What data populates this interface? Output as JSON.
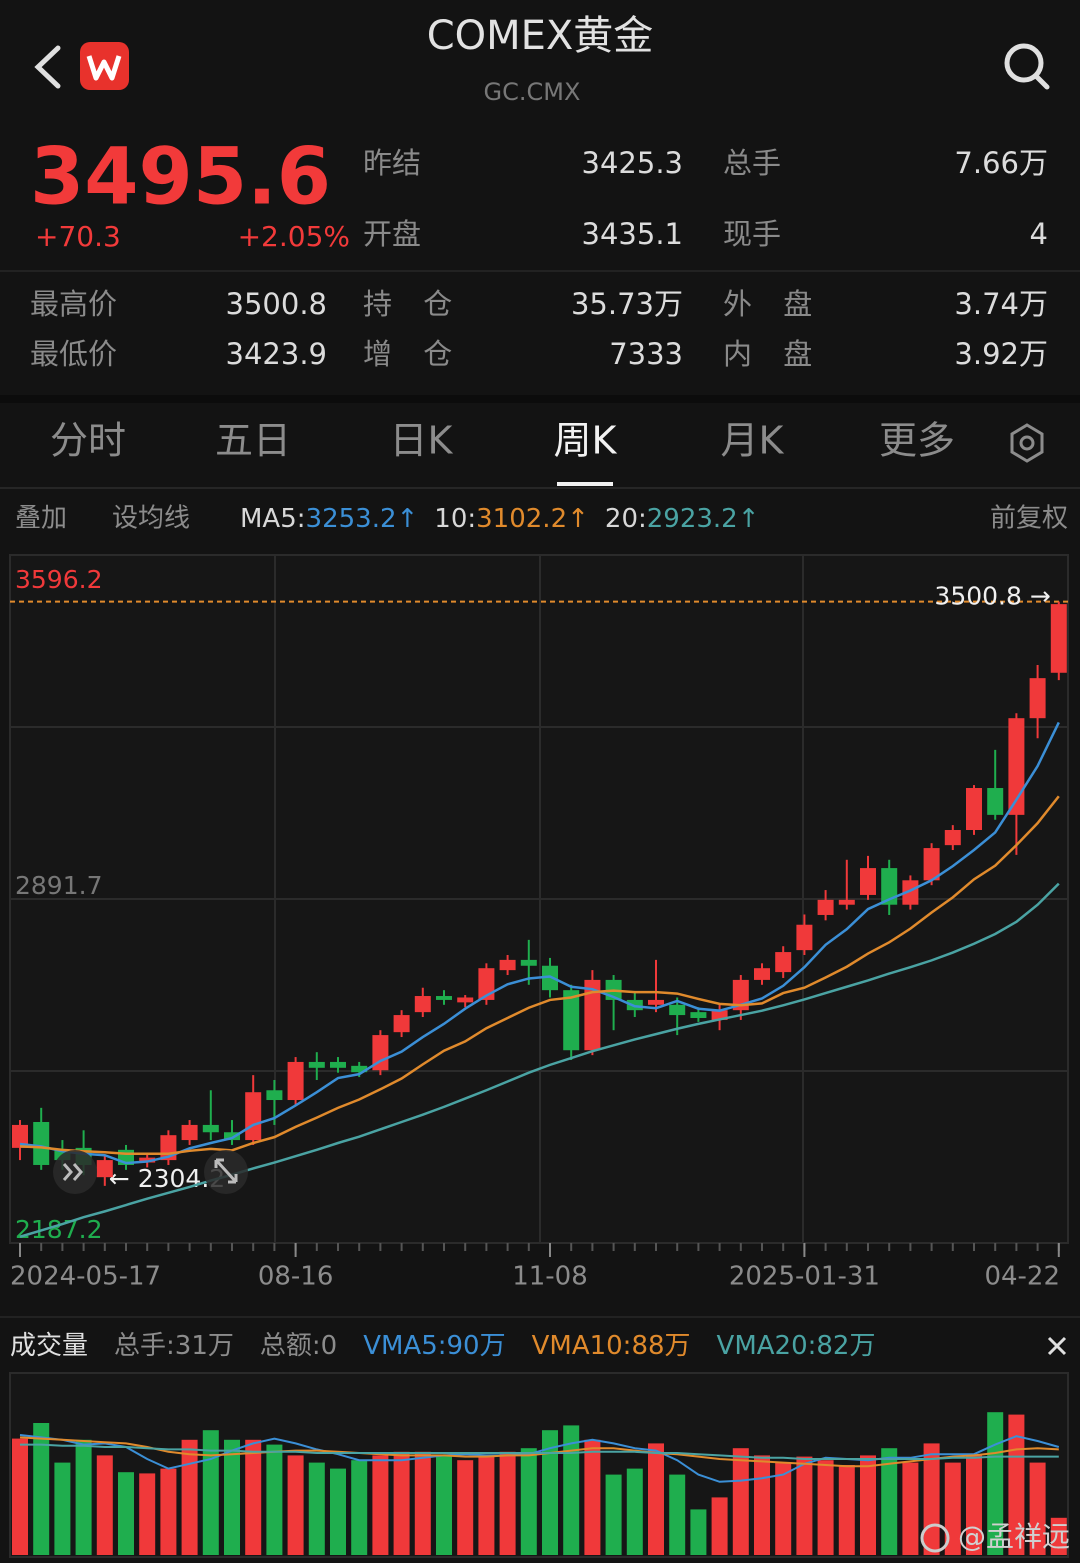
{
  "header": {
    "title": "COMEX黄金",
    "code": "GC.CMX"
  },
  "quote": {
    "price": 3495.6,
    "change": "+70.3",
    "change_pct": "+2.05%",
    "stats": [
      {
        "label": "昨结",
        "value": 3425.3
      },
      {
        "label": "总手",
        "value": "7.66万"
      },
      {
        "label": "开盘",
        "value": 3435.1
      },
      {
        "label": "现手",
        "value": 4
      },
      {
        "label": "最高价",
        "value": 3500.8
      },
      {
        "label": "持 仓",
        "value": "35.73万"
      },
      {
        "label": "外 盘",
        "value": "3.74万"
      },
      {
        "label": "最低价",
        "value": 3423.9
      },
      {
        "label": "增 仓",
        "value": 7333
      },
      {
        "label": "内 盘",
        "value": "3.92万"
      }
    ]
  },
  "tabs": {
    "items": [
      "分时",
      "五日",
      "日K",
      "周K",
      "月K",
      "更多"
    ],
    "active": 3
  },
  "toolbar": {
    "overlay": "叠加",
    "ma_setting": "设均线",
    "adjust": "前复权"
  },
  "watermark": "@孟祥远",
  "chart_data": [
    {
      "type": "candlestick",
      "up_color": "#f0393a",
      "down_color": "#1fae4e",
      "categories": [
        "2024-05-17",
        null,
        null,
        null,
        null,
        null,
        null,
        null,
        null,
        null,
        null,
        null,
        null,
        "08-16",
        null,
        null,
        null,
        null,
        null,
        null,
        null,
        null,
        null,
        null,
        null,
        "11-08",
        null,
        null,
        null,
        null,
        null,
        null,
        null,
        null,
        null,
        null,
        null,
        "2025-01-31",
        null,
        null,
        null,
        null,
        null,
        null,
        null,
        null,
        null,
        null,
        null,
        "04-22"
      ],
      "open": [
        2382,
        2435,
        2378,
        2382,
        2322,
        2378,
        2352,
        2357,
        2398,
        2429,
        2414,
        2398,
        2500,
        2480,
        2558,
        2558,
        2550,
        2541,
        2619,
        2660,
        2693,
        2680,
        2685,
        2746,
        2767,
        2755,
        2705,
        2582,
        2726,
        2685,
        2675,
        2675,
        2660,
        2644,
        2664,
        2726,
        2742,
        2787,
        2859,
        2880,
        2900,
        2955,
        2880,
        2930,
        3002,
        3033,
        3119,
        3064,
        3262,
        3355
      ],
      "high": [
        2439,
        2464,
        2398,
        2418,
        2367,
        2388,
        2372,
        2418,
        2439,
        2500,
        2439,
        2531,
        2521,
        2568,
        2578,
        2568,
        2558,
        2623,
        2664,
        2710,
        2705,
        2695,
        2760,
        2777,
        2808,
        2771,
        2716,
        2746,
        2736,
        2700,
        2767,
        2690,
        2670,
        2675,
        2736,
        2760,
        2795,
        2860,
        2910,
        2972,
        2980,
        2972,
        2940,
        3006,
        3043,
        3125,
        3197,
        3272,
        3371,
        3500.8
      ],
      "low": [
        2357,
        2337,
        2337,
        2326,
        2304.2,
        2337,
        2342,
        2347,
        2388,
        2398,
        2388,
        2388,
        2429,
        2470,
        2521,
        2536,
        2527,
        2531,
        2609,
        2650,
        2675,
        2670,
        2675,
        2736,
        2716,
        2690,
        2562,
        2572,
        2623,
        2650,
        2660,
        2613,
        2640,
        2623,
        2644,
        2716,
        2730,
        2777,
        2848,
        2870,
        2890,
        2859,
        2870,
        2920,
        2992,
        3023,
        3054,
        2982,
        3221,
        3340
      ],
      "close": [
        2429,
        2347,
        2357,
        2347,
        2357,
        2347,
        2362,
        2408,
        2429,
        2414,
        2398,
        2496,
        2480,
        2558,
        2546,
        2546,
        2537,
        2613,
        2654,
        2693,
        2685,
        2690,
        2750,
        2767,
        2755,
        2705,
        2582,
        2726,
        2685,
        2664,
        2685,
        2654,
        2648,
        2664,
        2726,
        2750,
        2783,
        2839,
        2890,
        2890,
        2955,
        2880,
        2930,
        2996,
        3033,
        3119,
        3064,
        3262,
        3344,
        3495.6
      ],
      "ylim": [
        2187.2,
        3596.2
      ],
      "yticks": [
        3596.2,
        2891.7,
        2187.2
      ],
      "series": [
        {
          "name": "MA5:",
          "legend_value": "3253.2↑",
          "color": "#3b8fd6",
          "values": [
            2390,
            2385,
            2375,
            2370,
            2367,
            2351,
            2354,
            2364,
            2381,
            2392,
            2402,
            2429,
            2443,
            2469,
            2496,
            2525,
            2533,
            2560,
            2579,
            2609,
            2636,
            2667,
            2694,
            2717,
            2729,
            2733,
            2712,
            2707,
            2691,
            2672,
            2668,
            2683,
            2667,
            2663,
            2675,
            2688,
            2714,
            2752,
            2798,
            2830,
            2871,
            2891,
            2909,
            2930,
            2959,
            2992,
            3028,
            3095,
            3164,
            3253.2
          ]
        },
        {
          "name": "10:",
          "legend_value": "3102.2↑",
          "color": "#e08a2c",
          "values": [
            2385,
            2383,
            2378,
            2375,
            2373,
            2370,
            2370,
            2370,
            2376,
            2380,
            2377,
            2392,
            2404,
            2425,
            2444,
            2464,
            2481,
            2502,
            2524,
            2553,
            2581,
            2600,
            2627,
            2648,
            2669,
            2685,
            2690,
            2701,
            2704,
            2701,
            2701,
            2698,
            2687,
            2677,
            2674,
            2678,
            2699,
            2710,
            2731,
            2753,
            2780,
            2803,
            2831,
            2864,
            2895,
            2932,
            2960,
            3002,
            3047,
            3102.2
          ]
        },
        {
          "name": "20:",
          "legend_value": "2923.2↑",
          "color": "#4aa3a3",
          "values": [
            2200,
            2213,
            2226,
            2240,
            2252,
            2265,
            2278,
            2290,
            2302,
            2315,
            2327,
            2340,
            2352,
            2365,
            2378,
            2392,
            2405,
            2420,
            2435,
            2450,
            2466,
            2483,
            2500,
            2518,
            2536,
            2552,
            2566,
            2580,
            2592,
            2604,
            2615,
            2626,
            2636,
            2645,
            2654,
            2663,
            2674,
            2686,
            2699,
            2712,
            2725,
            2739,
            2752,
            2766,
            2782,
            2800,
            2820,
            2845,
            2880,
            2923.2
          ]
        }
      ],
      "annotations": [
        {
          "label": "3500.8 →",
          "value": 3500.8
        },
        {
          "label": "← 2304.2",
          "value": 2304.2
        }
      ]
    },
    {
      "type": "bar",
      "title": "成交量",
      "stats": [
        "总手:31万",
        "总额:0"
      ],
      "ylim": [
        0,
        150
      ],
      "values": [
        97,
        110,
        77,
        96,
        83,
        69,
        68,
        72,
        96,
        104,
        96,
        96,
        92,
        83,
        77,
        72,
        79,
        83,
        86,
        86,
        83,
        79,
        83,
        86,
        89,
        104,
        108,
        96,
        67,
        72,
        93,
        67,
        38,
        48,
        89,
        83,
        77,
        82,
        79,
        75,
        83,
        89,
        77,
        93,
        77,
        83,
        119,
        117,
        77,
        31
      ],
      "series": [
        {
          "name": "VMA5:90万",
          "color": "#3b8fd6",
          "values": [
            100,
            98,
            96,
            92,
            93,
            90,
            80,
            72,
            76,
            80,
            87,
            93,
            97,
            93,
            88,
            84,
            79,
            79,
            79,
            81,
            83,
            84,
            83,
            83,
            84,
            89,
            93,
            96,
            93,
            89,
            87,
            79,
            67,
            61,
            62,
            64,
            67,
            76,
            81,
            80,
            79,
            81,
            81,
            84,
            84,
            84,
            92,
            99,
            95,
            90
          ]
        },
        {
          "name": "VMA10:88万",
          "color": "#e08a2c",
          "values": [
            98,
            97,
            96,
            95,
            94,
            93,
            90,
            86,
            84,
            83,
            84,
            85,
            86,
            87,
            87,
            86,
            85,
            84,
            83,
            83,
            83,
            82,
            82,
            83,
            83,
            85,
            87,
            89,
            89,
            87,
            85,
            84,
            82,
            80,
            79,
            78,
            77,
            76,
            75,
            74,
            74,
            76,
            78,
            80,
            82,
            83,
            85,
            88,
            89,
            88
          ]
        },
        {
          "name": "VMA20:82万",
          "color": "#4aa3a3",
          "values": [
            92,
            92,
            91,
            91,
            90,
            90,
            89,
            88,
            88,
            87,
            87,
            86,
            86,
            86,
            85,
            85,
            85,
            85,
            85,
            85,
            85,
            85,
            85,
            85,
            85,
            85,
            85,
            86,
            86,
            86,
            85,
            85,
            84,
            83,
            82,
            81,
            81,
            80,
            80,
            80,
            80,
            80,
            80,
            80,
            81,
            81,
            82,
            82,
            82,
            82
          ]
        }
      ]
    }
  ]
}
